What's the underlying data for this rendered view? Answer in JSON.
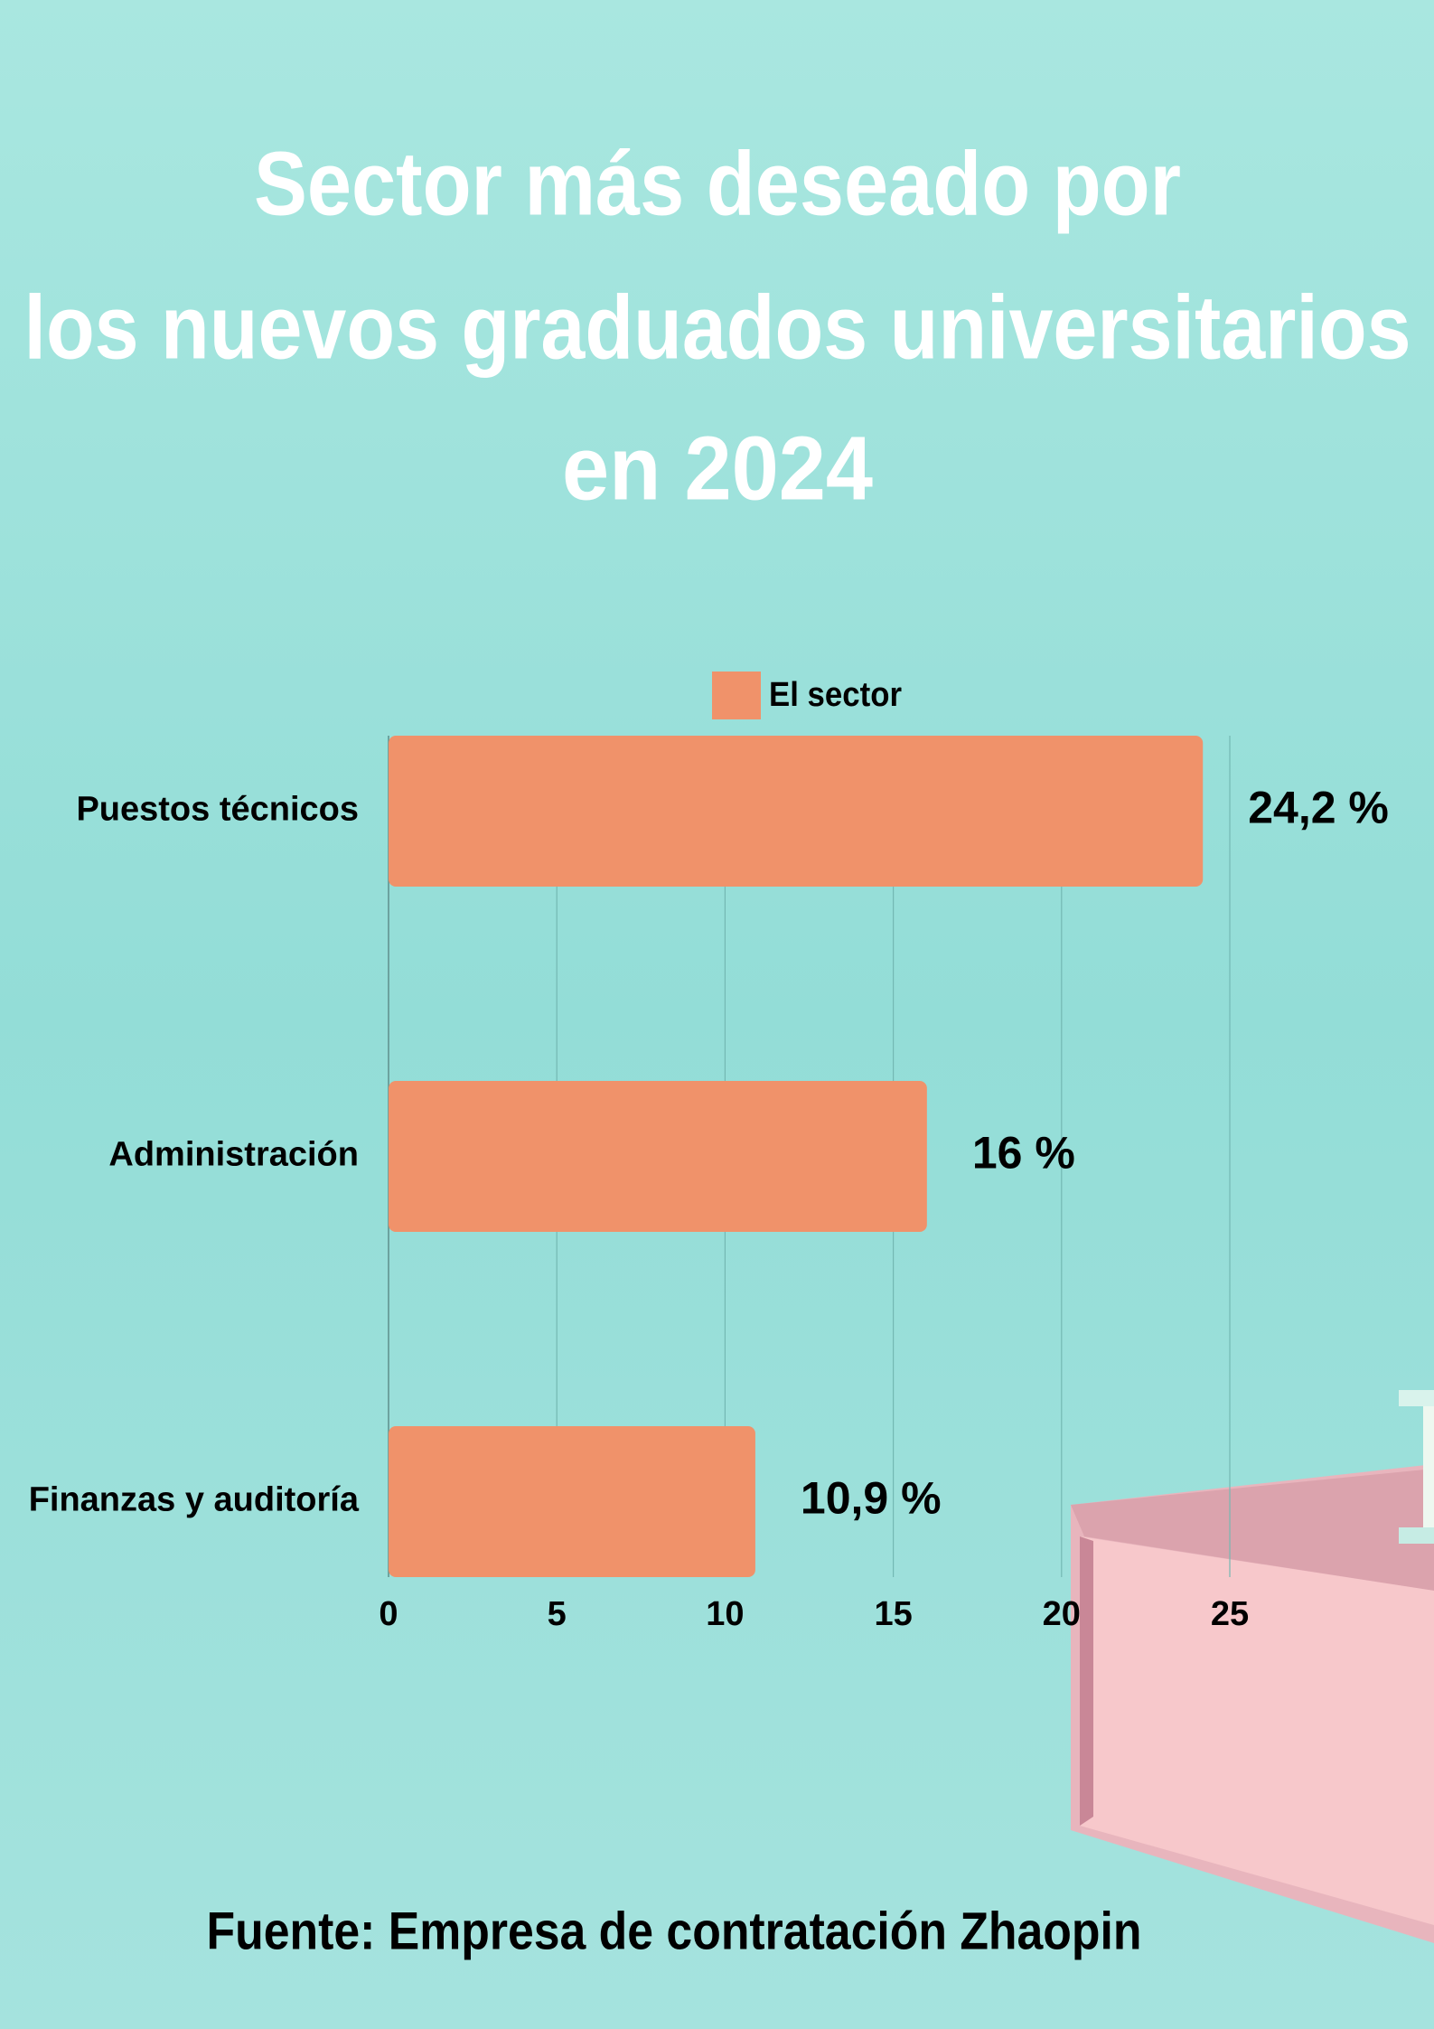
{
  "chart_data": {
    "type": "hbar",
    "title": [
      "Sector más deseado por",
      "los nuevos graduados universitarios",
      "en 2024"
    ],
    "categories": [
      "Puestos técnicos",
      "Administración",
      "Finanzas y auditoría"
    ],
    "series": [
      {
        "name": "El sector",
        "color": "#f0926a",
        "values": [
          24.2,
          16,
          10.9
        ],
        "value_labels": [
          "24,2 %",
          "16 %",
          "10,9 %"
        ]
      }
    ],
    "xlim": [
      0,
      25
    ],
    "xticks": [
      0,
      5,
      10,
      15,
      20,
      25
    ],
    "grid": true,
    "legend": "top",
    "source": "Fuente:  Empresa de contratación Zhaopin"
  }
}
